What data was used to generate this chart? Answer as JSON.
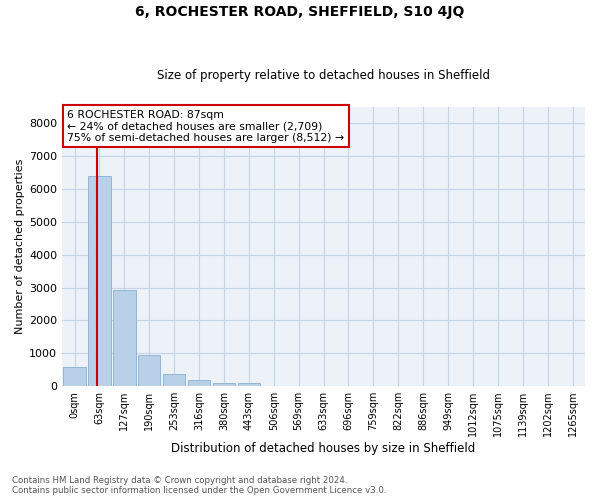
{
  "title1": "6, ROCHESTER ROAD, SHEFFIELD, S10 4JQ",
  "title2": "Size of property relative to detached houses in Sheffield",
  "xlabel": "Distribution of detached houses by size in Sheffield",
  "ylabel": "Number of detached properties",
  "bar_labels": [
    "0sqm",
    "63sqm",
    "127sqm",
    "190sqm",
    "253sqm",
    "316sqm",
    "380sqm",
    "443sqm",
    "506sqm",
    "569sqm",
    "633sqm",
    "696sqm",
    "759sqm",
    "822sqm",
    "886sqm",
    "949sqm",
    "1012sqm",
    "1075sqm",
    "1139sqm",
    "1202sqm",
    "1265sqm"
  ],
  "bar_values": [
    580,
    6390,
    2930,
    960,
    360,
    185,
    105,
    80,
    0,
    0,
    0,
    0,
    0,
    0,
    0,
    0,
    0,
    0,
    0,
    0,
    0
  ],
  "bar_color": "#b8d0e8",
  "bar_edge_color": "#8aafd0",
  "annotation_text_line1": "6 ROCHESTER ROAD: 87sqm",
  "annotation_text_line2": "← 24% of detached houses are smaller (2,709)",
  "annotation_text_line3": "75% of semi-detached houses are larger (8,512) →",
  "annotation_box_color": "#ffffff",
  "annotation_box_edge": "#cc0000",
  "vline_color": "#cc0000",
  "ylim": [
    0,
    8500
  ],
  "yticks": [
    0,
    1000,
    2000,
    3000,
    4000,
    5000,
    6000,
    7000,
    8000
  ],
  "footer_line1": "Contains HM Land Registry data © Crown copyright and database right 2024.",
  "footer_line2": "Contains public sector information licensed under the Open Government Licence v3.0.",
  "bg_color": "#edf2f9",
  "grid_color": "#c5d3e5"
}
